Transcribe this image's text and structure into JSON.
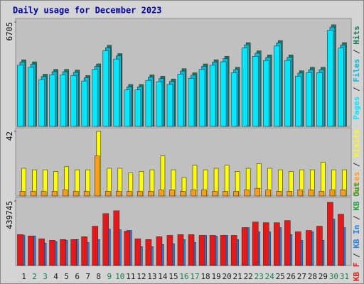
{
  "title": "Daily usage for December 2023",
  "legend_separator": " / ",
  "chart_data": [
    {
      "type": "bar",
      "ylim": [
        0,
        6705
      ],
      "yticks": [
        6705
      ],
      "series": [
        {
          "name": "Pages",
          "color": "#00e8ff",
          "values": [
            3929,
            3797,
            3003,
            3311,
            3311,
            3267,
            2914,
            3664,
            4855,
            4326,
            2341,
            2341,
            2958,
            2870,
            2694,
            3355,
            3091,
            3664,
            3929,
            4150,
            3444,
            5032,
            4502,
            4238,
            5164,
            4238,
            3223,
            3444,
            3444,
            6179,
            5032
          ]
        },
        {
          "name": "Files",
          "color": "#00b8d8",
          "values": [
            4129,
            3997,
            3203,
            3511,
            3511,
            3467,
            3114,
            3864,
            5055,
            4526,
            2541,
            2541,
            3158,
            3070,
            2894,
            3555,
            3291,
            3864,
            4129,
            4350,
            3644,
            5232,
            4702,
            4438,
            5364,
            4438,
            3423,
            3644,
            3644,
            6379,
            5232
          ]
        },
        {
          "name": "Hits",
          "color": "#1e7a5e",
          "values": [
            4279,
            4147,
            3353,
            3661,
            3661,
            3617,
            3264,
            4014,
            5205,
            4676,
            2691,
            2691,
            3308,
            3220,
            3044,
            3705,
            3441,
            4014,
            4279,
            4500,
            3794,
            5382,
            4852,
            4588,
            5514,
            4588,
            3573,
            3794,
            3794,
            6529,
            5382
          ]
        }
      ]
    },
    {
      "type": "bar",
      "ylim": [
        0,
        42
      ],
      "yticks": [
        42
      ],
      "series": [
        {
          "name": "Sites",
          "color": "#ff9c1c",
          "values": [
            3,
            3,
            3,
            3,
            4,
            3,
            3,
            26,
            3,
            3,
            3,
            3,
            3,
            4,
            4,
            3,
            4,
            4,
            3,
            3,
            3,
            4,
            5,
            4,
            3,
            3,
            4,
            4,
            3,
            4,
            4
          ]
        },
        {
          "name": "Visits",
          "color": "#ffff00",
          "values": [
            18,
            17,
            17,
            16,
            19,
            17,
            17,
            42,
            18,
            18,
            15,
            16,
            17,
            26,
            17,
            12,
            20,
            17,
            18,
            20,
            16,
            18,
            21,
            18,
            17,
            16,
            17,
            17,
            22,
            17,
            17
          ]
        }
      ]
    },
    {
      "type": "bar",
      "ylim": [
        0,
        439745
      ],
      "yticks": [
        439745
      ],
      "categories": [
        "1",
        "2",
        "3",
        "4",
        "5",
        "6",
        "7",
        "8",
        "9",
        "10",
        "11",
        "12",
        "13",
        "14",
        "15",
        "16",
        "17",
        "18",
        "19",
        "20",
        "21",
        "22",
        "23",
        "24",
        "25",
        "26",
        "27",
        "28",
        "29",
        "30",
        "31"
      ],
      "category_colors": [
        "#202020",
        "#1a8050",
        "#1a8050",
        "#202020",
        "#202020",
        "#202020",
        "#202020",
        "#202020",
        "#1a8050",
        "#1a8050",
        "#202020",
        "#202020",
        "#202020",
        "#202020",
        "#202020",
        "#1a8050",
        "#1a8050",
        "#202020",
        "#202020",
        "#202020",
        "#202020",
        "#202020",
        "#1a8050",
        "#1a8050",
        "#202020",
        "#202020",
        "#202020",
        "#202020",
        "#202020",
        "#1a8050",
        "#1a8050"
      ],
      "series": [
        {
          "name": "KB F",
          "color": "#e81818",
          "values": [
            210320,
            200760,
            181640,
            172080,
            176860,
            176860,
            195980,
            267680,
            353720,
            372840,
            234220,
            181640,
            176860,
            195980,
            205540,
            210320,
            210320,
            205540,
            205540,
            205540,
            205540,
            258120,
            296360,
            291580,
            291580,
            305920,
            229440,
            239000,
            267680,
            430200,
            348940
          ]
        },
        {
          "name": "KB In",
          "color": "#2a7ee0",
          "values": [
            205540,
            200760,
            152960,
            162520,
            172080,
            176860,
            157740,
            176860,
            248560,
            243780,
            239000,
            129060,
            129060,
            143400,
            148180,
            176860,
            157740,
            205540,
            200760,
            205540,
            176860,
            258120,
            229440,
            229440,
            258120,
            210320,
            172080,
            229440,
            172080,
            315480,
            258120
          ]
        },
        {
          "name": "KB Out",
          "color": "#20a040",
          "values": [
            0,
            0,
            0,
            0,
            0,
            0,
            0,
            0,
            0,
            0,
            0,
            0,
            0,
            0,
            0,
            0,
            0,
            0,
            0,
            0,
            0,
            0,
            0,
            0,
            0,
            0,
            0,
            0,
            0,
            0,
            0
          ]
        }
      ]
    }
  ]
}
